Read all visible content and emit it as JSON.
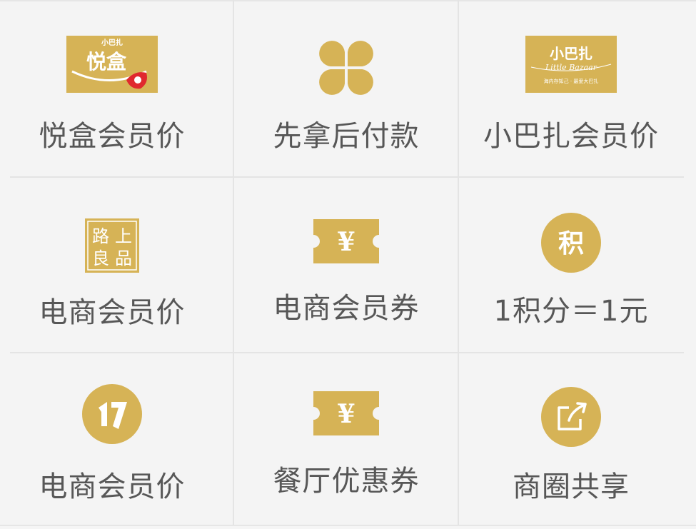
{
  "colors": {
    "gold": "#d6b356",
    "gold_dark": "#c9a54a",
    "label_text": "#575757",
    "divider": "#e4e4e4",
    "background": "#f4f4f4",
    "accent_red": "#e0282e"
  },
  "cells": [
    {
      "label": "悦盒会员价",
      "icon": "yuehe-logo",
      "logo_top": "小巴扎",
      "logo_main": "悦盒"
    },
    {
      "label": "先拿后付款",
      "icon": "four-leaf-clover-icon"
    },
    {
      "label": "小巴扎会员价",
      "icon": "xiaobazha-logo",
      "logo_main": "小巴扎",
      "logo_script": "Little Bazaar",
      "logo_bottom": "海内存知己 · 最爱大巴扎"
    },
    {
      "label": "电商会员价",
      "icon": "lupin-logo",
      "logo_chars": [
        "路",
        "上",
        "良",
        "品"
      ]
    },
    {
      "label": "电商会员券",
      "icon": "yen-ticket-icon",
      "icon_glyph": "¥"
    },
    {
      "label": "1积分＝1元",
      "icon": "points-circle-icon",
      "icon_glyph": "积"
    },
    {
      "label": "电商会员价",
      "icon": "seventeen-logo-icon",
      "icon_glyph": "17"
    },
    {
      "label": "餐厅优惠券",
      "icon": "yen-ticket-icon",
      "icon_glyph": "¥"
    },
    {
      "label": "商圈共享",
      "icon": "share-arrow-icon"
    }
  ]
}
